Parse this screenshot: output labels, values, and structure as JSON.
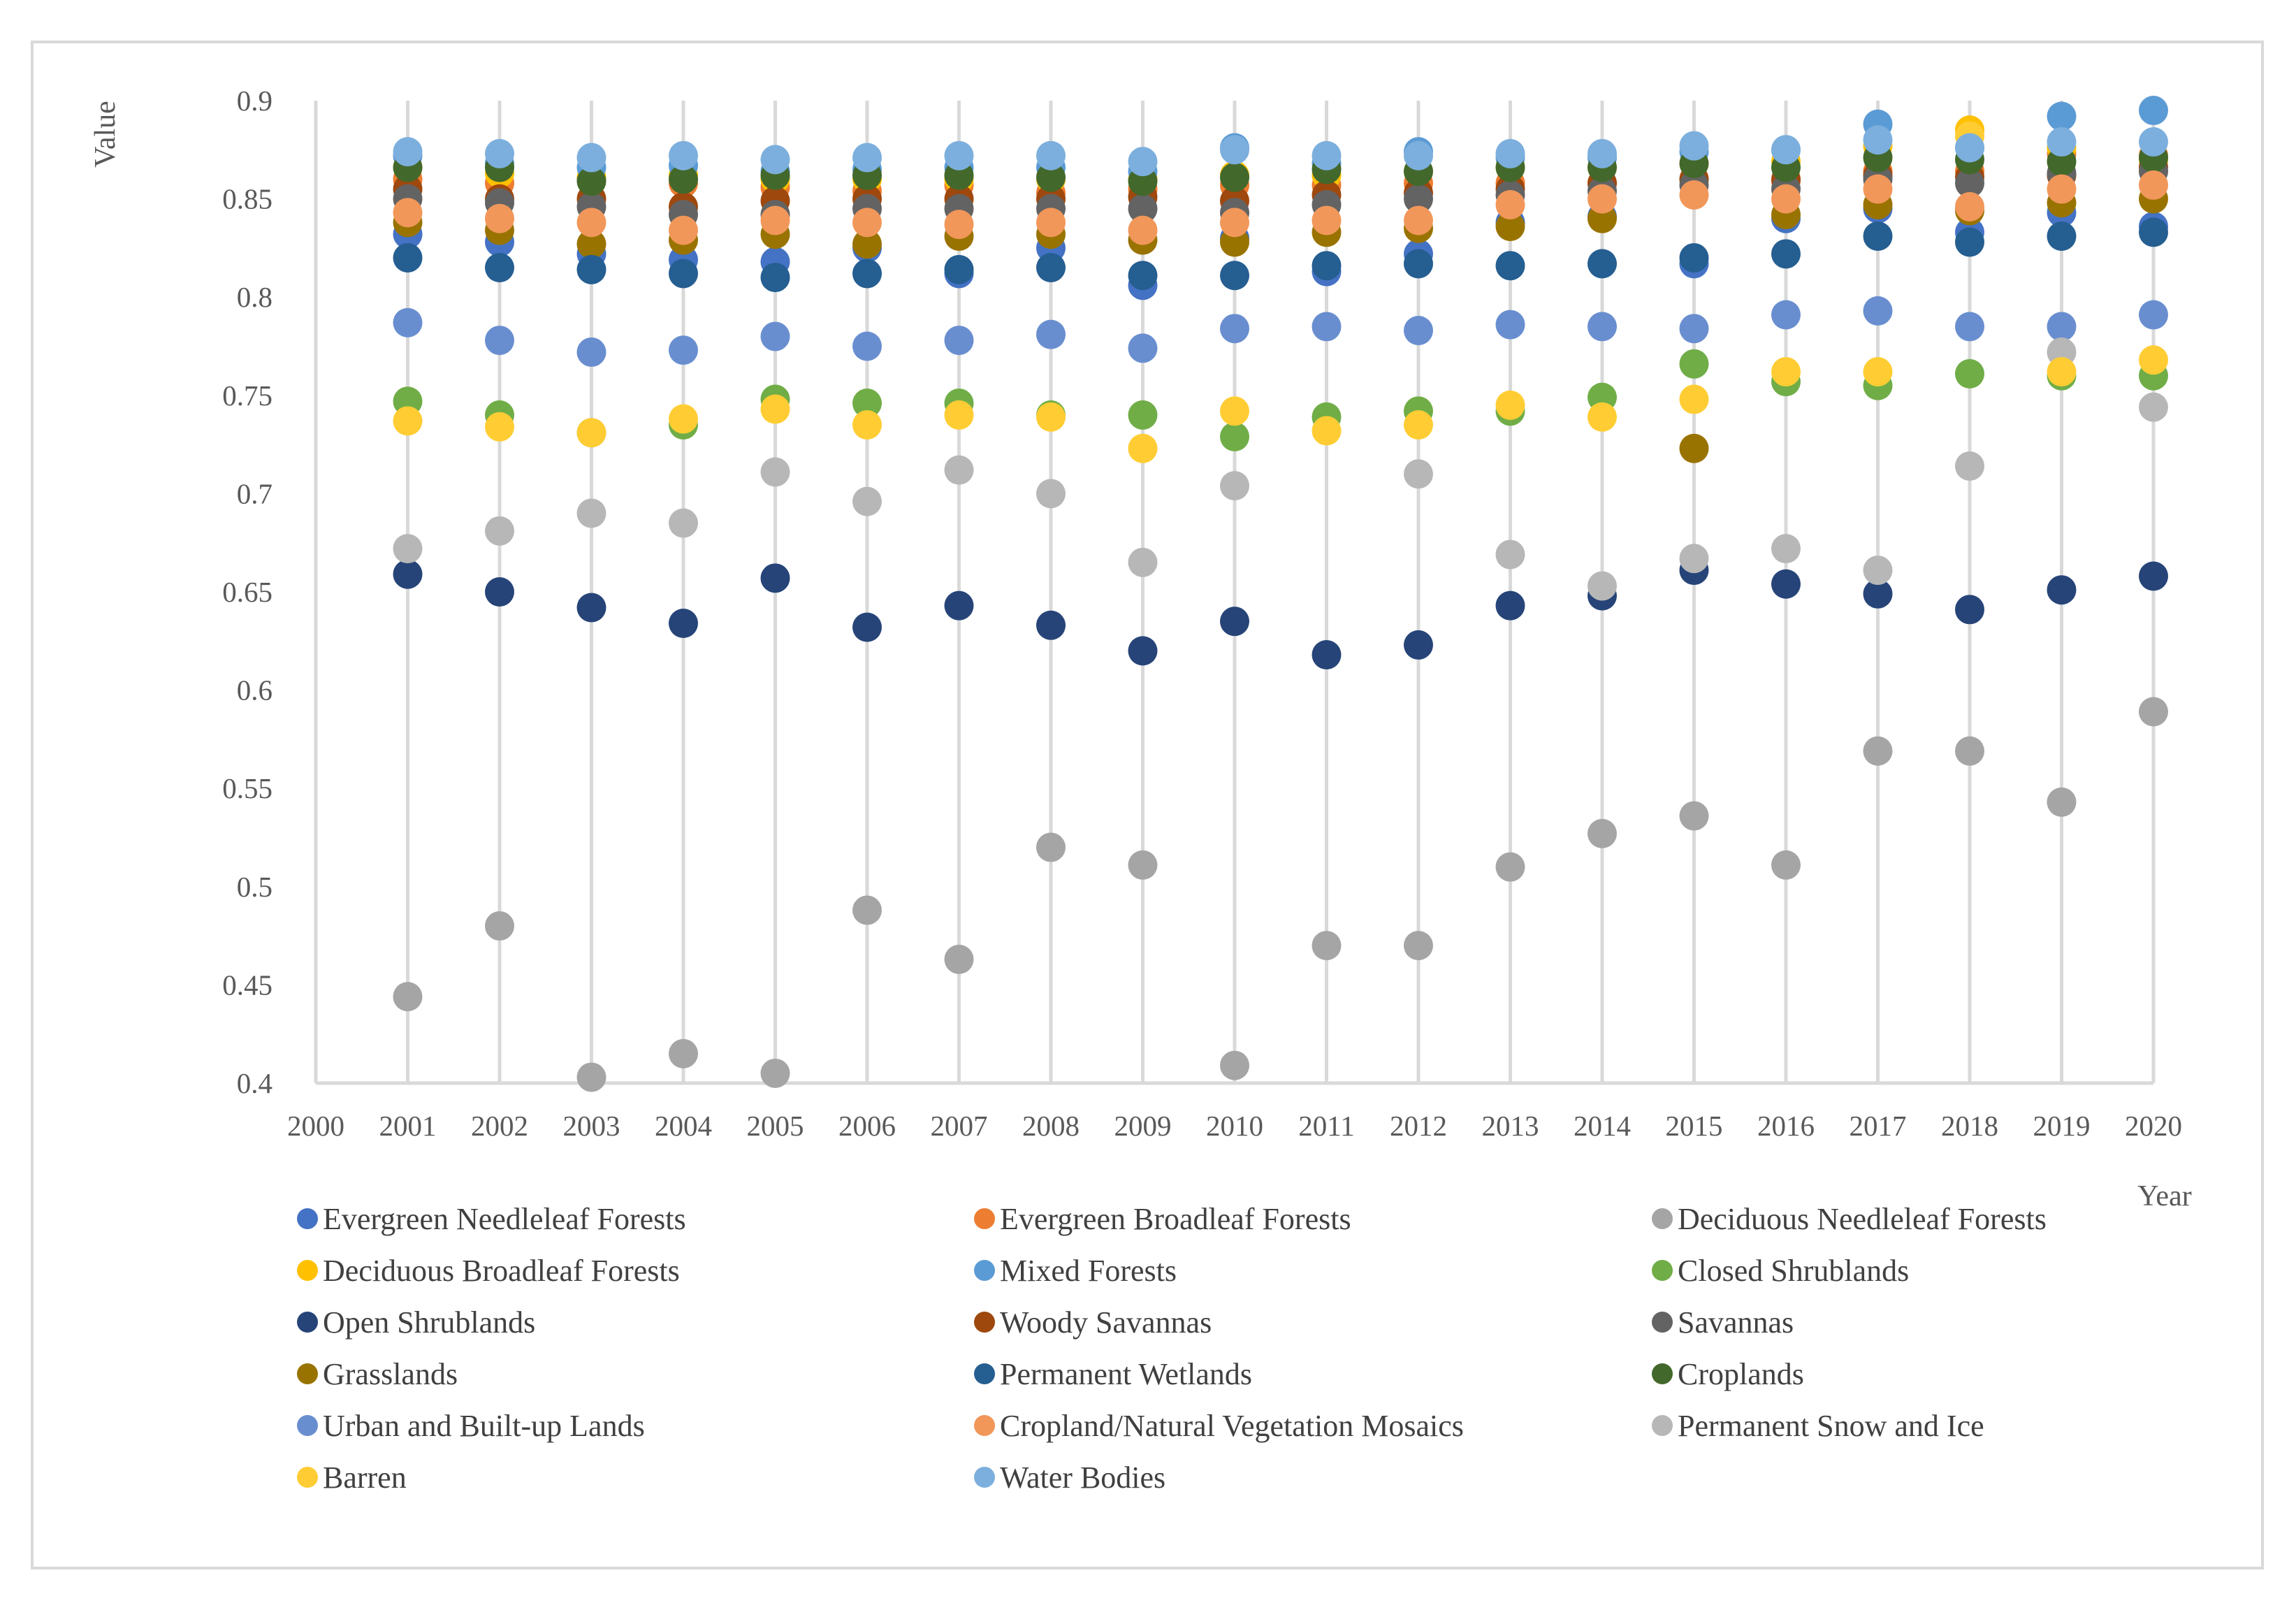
{
  "chart_data": {
    "type": "scatter",
    "title": "",
    "xlabel": "Year",
    "ylabel": "Value",
    "xlim": [
      2000,
      2020
    ],
    "ylim": [
      0.4,
      0.9
    ],
    "x_ticks": [
      "2000",
      "2001",
      "2002",
      "2003",
      "2004",
      "2005",
      "2006",
      "2007",
      "2008",
      "2009",
      "2010",
      "2011",
      "2012",
      "2013",
      "2014",
      "2015",
      "2016",
      "2017",
      "2018",
      "2019",
      "2020"
    ],
    "y_ticks": [
      "0.4",
      "0.45",
      "0.5",
      "0.55",
      "0.6",
      "0.65",
      "0.7",
      "0.75",
      "0.8",
      "0.85",
      "0.9"
    ],
    "grid": "vertical",
    "legend_position": "bottom",
    "x": [
      2001,
      2002,
      2003,
      2004,
      2005,
      2006,
      2007,
      2008,
      2009,
      2010,
      2011,
      2012,
      2013,
      2014,
      2015,
      2016,
      2017,
      2018,
      2019,
      2020
    ],
    "series": [
      {
        "name": "Evergreen Needleleaf Forests",
        "color": "#4472c4",
        "values": [
          0.832,
          0.828,
          0.822,
          0.819,
          0.818,
          0.825,
          0.812,
          0.825,
          0.806,
          0.83,
          0.813,
          0.822,
          0.838,
          0.841,
          0.817,
          0.84,
          0.845,
          0.833,
          0.843,
          0.836
        ]
      },
      {
        "name": "Evergreen Broadleaf Forests",
        "color": "#ed7d31",
        "values": [
          0.86,
          0.858,
          0.86,
          0.858,
          0.856,
          0.854,
          0.857,
          0.853,
          0.855,
          0.857,
          0.857,
          0.858,
          0.858,
          0.858,
          0.86,
          0.859,
          0.864,
          0.864,
          0.873,
          0.872
        ]
      },
      {
        "name": "Deciduous Needleleaf Forests",
        "color": "#a5a5a5",
        "values": [
          0.444,
          0.48,
          0.403,
          0.415,
          0.405,
          0.488,
          0.463,
          0.52,
          0.511,
          0.409,
          0.47,
          0.47,
          0.51,
          0.527,
          0.536,
          0.511,
          0.569,
          0.569,
          0.543,
          0.589
        ]
      },
      {
        "name": "Deciduous Broadleaf Forests",
        "color": "#ffc000",
        "values": [
          0.866,
          0.863,
          0.861,
          0.862,
          0.86,
          0.86,
          0.86,
          0.86,
          0.86,
          0.862,
          0.862,
          0.864,
          0.866,
          0.866,
          0.868,
          0.869,
          0.877,
          0.885,
          0.876,
          0.87
        ]
      },
      {
        "name": "Mixed Forests",
        "color": "#5b9bd5",
        "values": [
          0.872,
          0.868,
          0.866,
          0.867,
          0.864,
          0.865,
          0.866,
          0.866,
          0.864,
          0.876,
          0.868,
          0.874,
          0.871,
          0.871,
          0.874,
          0.875,
          0.888,
          0.876,
          0.892,
          0.895
        ]
      },
      {
        "name": "Closed Shrublands",
        "color": "#70ad47",
        "values": [
          0.747,
          0.74,
          0.731,
          0.735,
          0.748,
          0.746,
          0.746,
          0.74,
          0.74,
          0.729,
          0.739,
          0.742,
          0.742,
          0.749,
          0.766,
          0.757,
          0.755,
          0.761,
          0.76,
          0.76
        ]
      },
      {
        "name": "Open Shrublands",
        "color": "#264478",
        "values": [
          0.659,
          0.65,
          0.642,
          0.634,
          0.657,
          0.632,
          0.643,
          0.633,
          0.62,
          0.635,
          0.618,
          0.623,
          0.643,
          0.648,
          0.661,
          0.654,
          0.649,
          0.641,
          0.651,
          0.658
        ]
      },
      {
        "name": "Woody Savannas",
        "color": "#9e480e",
        "values": [
          0.855,
          0.85,
          0.85,
          0.846,
          0.849,
          0.85,
          0.85,
          0.85,
          0.851,
          0.849,
          0.852,
          0.853,
          0.855,
          0.858,
          0.86,
          0.86,
          0.862,
          0.861,
          0.862,
          0.866
        ]
      },
      {
        "name": "Savannas",
        "color": "#636363",
        "values": [
          0.85,
          0.848,
          0.846,
          0.842,
          0.842,
          0.845,
          0.845,
          0.845,
          0.845,
          0.843,
          0.847,
          0.85,
          0.852,
          0.854,
          0.857,
          0.855,
          0.86,
          0.858,
          0.863,
          0.864
        ]
      },
      {
        "name": "Grasslands",
        "color": "#997300",
        "values": [
          0.838,
          0.834,
          0.827,
          0.829,
          0.832,
          0.827,
          0.831,
          0.832,
          0.829,
          0.828,
          0.833,
          0.835,
          0.836,
          0.84,
          0.723,
          0.842,
          0.847,
          0.844,
          0.848,
          0.85
        ]
      },
      {
        "name": "Permanent Wetlands",
        "color": "#255e91",
        "values": [
          0.82,
          0.815,
          0.814,
          0.812,
          0.81,
          0.812,
          0.814,
          0.815,
          0.811,
          0.811,
          0.816,
          0.817,
          0.816,
          0.817,
          0.82,
          0.822,
          0.831,
          0.828,
          0.831,
          0.833
        ]
      },
      {
        "name": "Croplands",
        "color": "#43682b",
        "values": [
          0.866,
          0.866,
          0.859,
          0.86,
          0.862,
          0.862,
          0.862,
          0.861,
          0.859,
          0.861,
          0.865,
          0.864,
          0.866,
          0.866,
          0.868,
          0.866,
          0.871,
          0.87,
          0.869,
          0.871
        ]
      },
      {
        "name": "Urban and Built-up Lands",
        "color": "#698ed0",
        "values": [
          0.787,
          0.778,
          0.772,
          0.773,
          0.78,
          0.775,
          0.778,
          0.781,
          0.774,
          0.784,
          0.785,
          0.783,
          0.786,
          0.785,
          0.784,
          0.791,
          0.793,
          0.785,
          0.785,
          0.791
        ]
      },
      {
        "name": "Cropland/Natural Vegetation Mosaics",
        "color": "#f1975a",
        "values": [
          0.843,
          0.84,
          0.838,
          0.834,
          0.839,
          0.838,
          0.837,
          0.838,
          0.834,
          0.838,
          0.839,
          0.839,
          0.847,
          0.85,
          0.852,
          0.85,
          0.855,
          0.846,
          0.855,
          0.857
        ]
      },
      {
        "name": "Permanent Snow and Ice",
        "color": "#b7b7b7",
        "values": [
          0.672,
          0.681,
          0.69,
          0.685,
          0.711,
          0.696,
          0.712,
          0.7,
          0.665,
          0.704,
          null,
          0.71,
          0.669,
          0.653,
          0.667,
          0.672,
          0.661,
          0.714,
          0.772,
          0.744
        ]
      },
      {
        "name": "Barren",
        "color": "#ffcd33",
        "values": [
          0.737,
          0.734,
          0.731,
          0.738,
          0.743,
          0.735,
          0.74,
          0.739,
          0.723,
          0.742,
          0.732,
          0.735,
          0.745,
          0.739,
          0.748,
          0.762,
          0.762,
          0.882,
          0.762,
          0.768
        ]
      },
      {
        "name": "Water Bodies",
        "color": "#7cafdd",
        "values": [
          0.874,
          0.873,
          0.871,
          0.872,
          0.87,
          0.871,
          0.872,
          0.872,
          0.869,
          0.875,
          0.872,
          0.872,
          0.873,
          0.873,
          0.877,
          0.875,
          0.88,
          0.876,
          0.879,
          0.879
        ]
      }
    ]
  }
}
